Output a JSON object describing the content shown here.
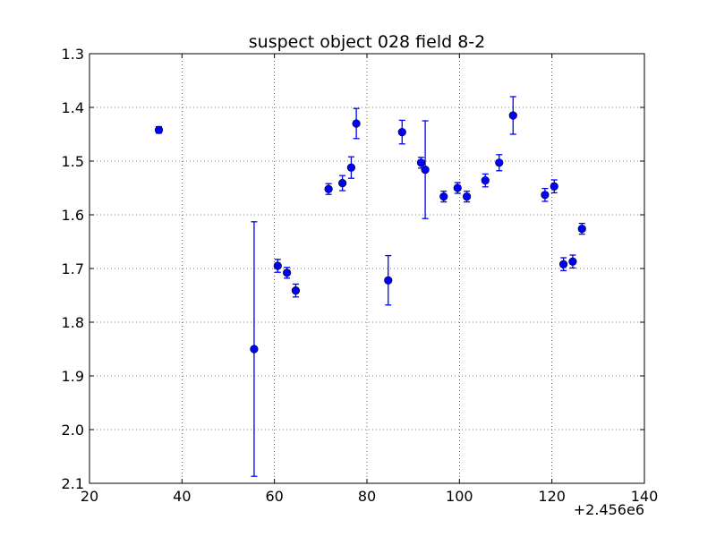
{
  "chart_data": {
    "type": "scatter",
    "title": "suspect object 028 field 8-2",
    "x_offset_label": "+2.456e6",
    "xlim": [
      20,
      140
    ],
    "ylim": [
      1.3,
      2.1
    ],
    "y_inverted": true,
    "grid": true,
    "marker_color": "#0000ff",
    "x_ticks": [
      "20",
      "40",
      "60",
      "80",
      "100",
      "120",
      "140"
    ],
    "y_ticks": [
      "1.3",
      "1.4",
      "1.5",
      "1.6",
      "1.7",
      "1.8",
      "1.9",
      "2.0",
      "2.1"
    ],
    "points": [
      {
        "x": 35.0,
        "y": 1.442,
        "err": 0.006
      },
      {
        "x": 55.6,
        "y": 1.85,
        "err": 0.237
      },
      {
        "x": 60.7,
        "y": 1.695,
        "err": 0.012
      },
      {
        "x": 62.7,
        "y": 1.708,
        "err": 0.01
      },
      {
        "x": 64.6,
        "y": 1.741,
        "err": 0.012
      },
      {
        "x": 71.7,
        "y": 1.552,
        "err": 0.01
      },
      {
        "x": 74.7,
        "y": 1.541,
        "err": 0.014
      },
      {
        "x": 76.6,
        "y": 1.512,
        "err": 0.02
      },
      {
        "x": 77.7,
        "y": 1.43,
        "err": 0.028
      },
      {
        "x": 84.6,
        "y": 1.722,
        "err": 0.046
      },
      {
        "x": 87.6,
        "y": 1.446,
        "err": 0.022
      },
      {
        "x": 91.7,
        "y": 1.503,
        "err": 0.01
      },
      {
        "x": 92.6,
        "y": 1.516,
        "err": 0.091
      },
      {
        "x": 96.6,
        "y": 1.566,
        "err": 0.01
      },
      {
        "x": 99.6,
        "y": 1.55,
        "err": 0.01
      },
      {
        "x": 101.6,
        "y": 1.566,
        "err": 0.01
      },
      {
        "x": 105.6,
        "y": 1.536,
        "err": 0.012
      },
      {
        "x": 108.6,
        "y": 1.503,
        "err": 0.015
      },
      {
        "x": 111.6,
        "y": 1.415,
        "err": 0.035
      },
      {
        "x": 118.5,
        "y": 1.563,
        "err": 0.012
      },
      {
        "x": 120.5,
        "y": 1.547,
        "err": 0.012
      },
      {
        "x": 122.5,
        "y": 1.692,
        "err": 0.012
      },
      {
        "x": 124.5,
        "y": 1.687,
        "err": 0.012
      },
      {
        "x": 126.5,
        "y": 1.626,
        "err": 0.01
      }
    ]
  }
}
